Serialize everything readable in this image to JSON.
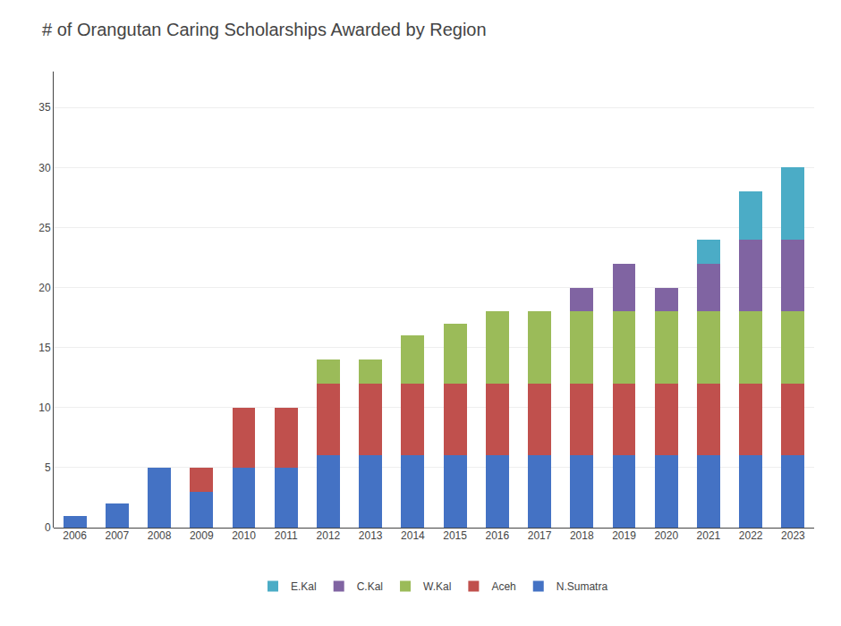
{
  "chart_data": {
    "type": "bar",
    "title": "# of Orangutan Caring Scholarships Awarded by Region",
    "categories": [
      "2006",
      "2007",
      "2008",
      "2009",
      "2010",
      "2011",
      "2012",
      "2013",
      "2014",
      "2015",
      "2016",
      "2017",
      "2018",
      "2019",
      "2020",
      "2021",
      "2022",
      "2023"
    ],
    "series": [
      {
        "name": "N.Sumatra",
        "color": "#4472C4",
        "values": [
          1,
          2,
          5,
          3,
          5,
          5,
          6,
          6,
          6,
          6,
          6,
          6,
          6,
          6,
          6,
          6,
          6,
          6
        ]
      },
      {
        "name": "Aceh",
        "color": "#C0504D",
        "values": [
          0,
          0,
          0,
          2,
          5,
          5,
          6,
          6,
          6,
          6,
          6,
          6,
          6,
          6,
          6,
          6,
          6,
          6
        ]
      },
      {
        "name": "W.Kal",
        "color": "#9BBB59",
        "values": [
          0,
          0,
          0,
          0,
          0,
          0,
          2,
          2,
          4,
          5,
          6,
          6,
          6,
          6,
          6,
          6,
          6,
          6
        ]
      },
      {
        "name": "C.Kal",
        "color": "#8064A2",
        "values": [
          0,
          0,
          0,
          0,
          0,
          0,
          0,
          0,
          0,
          0,
          0,
          0,
          2,
          4,
          2,
          4,
          6,
          6
        ]
      },
      {
        "name": "E.Kal",
        "color": "#4BACC6",
        "values": [
          0,
          0,
          0,
          0,
          0,
          0,
          0,
          0,
          0,
          0,
          0,
          0,
          0,
          0,
          0,
          2,
          4,
          6
        ]
      }
    ],
    "stacked": true,
    "ylim": [
      0,
      38
    ],
    "yticks": [
      0,
      5,
      10,
      15,
      20,
      25,
      30,
      35
    ],
    "grid": true,
    "legend": "bottom"
  }
}
